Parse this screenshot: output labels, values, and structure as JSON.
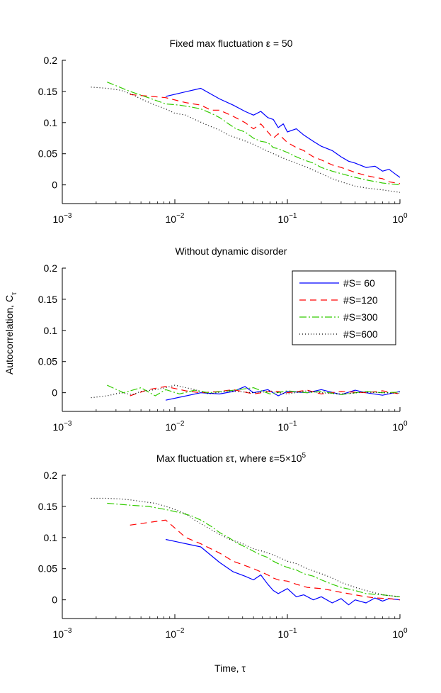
{
  "figure": {
    "ylabel": "Autocorrelation, C",
    "ylabel_sub": "τ",
    "xlabel": "Time, τ"
  },
  "chart_data": [
    {
      "type": "line",
      "title": "Fixed max fluctuation ε = 50",
      "xscale": "log",
      "xlim": [
        0.001,
        1
      ],
      "ylim": [
        -0.03,
        0.2
      ],
      "yticks": [
        "0",
        "0.05",
        "0.1",
        "0.15",
        "0.2"
      ],
      "ytick_values": [
        0,
        0.05,
        0.1,
        0.15,
        0.2
      ],
      "xtick_values": [
        0.001,
        0.01,
        0.1,
        1
      ],
      "xtick_base": "10",
      "xtick_exponents": [
        "−3",
        "−2",
        "−1",
        "0"
      ],
      "legend": false,
      "series": [
        {
          "name": "#S= 60",
          "color": "#0000ff",
          "dash": "none",
          "x": [
            0.0083,
            0.017,
            0.025,
            0.033,
            0.042,
            0.05,
            0.058,
            0.067,
            0.075,
            0.083,
            0.092,
            0.1,
            0.12,
            0.14,
            0.17,
            0.2,
            0.25,
            0.3,
            0.35,
            0.4,
            0.5,
            0.6,
            0.7,
            0.8,
            0.9,
            1.0
          ],
          "y": [
            0.142,
            0.155,
            0.138,
            0.128,
            0.118,
            0.112,
            0.118,
            0.108,
            0.105,
            0.092,
            0.098,
            0.085,
            0.09,
            0.08,
            0.07,
            0.062,
            0.055,
            0.045,
            0.038,
            0.035,
            0.028,
            0.03,
            0.022,
            0.025,
            0.018,
            0.012
          ]
        },
        {
          "name": "#S=120",
          "color": "#ff0000",
          "dash": "9,6",
          "x": [
            0.004,
            0.0083,
            0.0125,
            0.017,
            0.021,
            0.025,
            0.033,
            0.042,
            0.05,
            0.058,
            0.067,
            0.075,
            0.083,
            0.1,
            0.12,
            0.14,
            0.17,
            0.2,
            0.25,
            0.3,
            0.4,
            0.5,
            0.6,
            0.7,
            0.8,
            1.0
          ],
          "y": [
            0.145,
            0.14,
            0.132,
            0.128,
            0.12,
            0.12,
            0.11,
            0.1,
            0.09,
            0.098,
            0.085,
            0.075,
            0.082,
            0.068,
            0.06,
            0.055,
            0.045,
            0.04,
            0.032,
            0.028,
            0.02,
            0.015,
            0.012,
            0.01,
            0.005,
            0.002
          ]
        },
        {
          "name": "#S=300",
          "color": "#33cc00",
          "dash": "10,3,2,3",
          "x": [
            0.0025,
            0.004,
            0.0058,
            0.0083,
            0.011,
            0.014,
            0.017,
            0.021,
            0.025,
            0.03,
            0.035,
            0.042,
            0.05,
            0.058,
            0.067,
            0.075,
            0.083,
            0.1,
            0.12,
            0.14,
            0.17,
            0.2,
            0.25,
            0.3,
            0.4,
            0.5,
            0.7,
            1.0
          ],
          "y": [
            0.165,
            0.15,
            0.14,
            0.13,
            0.128,
            0.125,
            0.122,
            0.115,
            0.108,
            0.098,
            0.09,
            0.085,
            0.075,
            0.07,
            0.068,
            0.06,
            0.058,
            0.052,
            0.045,
            0.04,
            0.035,
            0.028,
            0.022,
            0.018,
            0.012,
            0.008,
            0.003,
            0.0
          ]
        },
        {
          "name": "#S=600",
          "color": "#000000",
          "dash": "1,3",
          "x": [
            0.0018,
            0.0025,
            0.0033,
            0.0042,
            0.005,
            0.0067,
            0.0083,
            0.01,
            0.0125,
            0.015,
            0.02,
            0.025,
            0.03,
            0.04,
            0.05,
            0.06,
            0.075,
            0.1,
            0.12,
            0.15,
            0.2,
            0.25,
            0.3,
            0.4,
            0.5,
            0.7,
            1.0
          ],
          "y": [
            0.157,
            0.155,
            0.152,
            0.145,
            0.138,
            0.128,
            0.122,
            0.115,
            0.112,
            0.105,
            0.095,
            0.088,
            0.08,
            0.072,
            0.065,
            0.058,
            0.05,
            0.04,
            0.035,
            0.028,
            0.018,
            0.01,
            0.005,
            -0.002,
            -0.005,
            -0.008,
            -0.012
          ]
        }
      ]
    },
    {
      "type": "line",
      "title": "Without dynamic disorder",
      "xscale": "log",
      "xlim": [
        0.001,
        1
      ],
      "ylim": [
        -0.03,
        0.2
      ],
      "yticks": [
        "0",
        "0.05",
        "0.1",
        "0.15",
        "0.2"
      ],
      "ytick_values": [
        0,
        0.05,
        0.1,
        0.15,
        0.2
      ],
      "xtick_values": [
        0.001,
        0.01,
        0.1,
        1
      ],
      "xtick_base": "10",
      "xtick_exponents": [
        "−3",
        "−2",
        "−1",
        "0"
      ],
      "legend": true,
      "legend_position": "top-right",
      "series": [
        {
          "name": "#S= 60",
          "color": "#0000ff",
          "dash": "none",
          "x": [
            0.0083,
            0.017,
            0.025,
            0.033,
            0.042,
            0.05,
            0.067,
            0.083,
            0.1,
            0.15,
            0.2,
            0.3,
            0.4,
            0.5,
            0.7,
            1.0
          ],
          "y": [
            -0.012,
            0.0,
            -0.002,
            0.002,
            0.01,
            0.0,
            0.005,
            -0.005,
            0.002,
            0.0,
            0.005,
            -0.003,
            0.004,
            0.0,
            -0.004,
            0.002
          ]
        },
        {
          "name": "#S=120",
          "color": "#ff0000",
          "dash": "9,6",
          "x": [
            0.004,
            0.0058,
            0.0083,
            0.0125,
            0.017,
            0.025,
            0.033,
            0.05,
            0.075,
            0.1,
            0.15,
            0.2,
            0.3,
            0.5,
            0.7,
            1.0
          ],
          "y": [
            -0.005,
            0.005,
            0.01,
            0.003,
            0.0,
            0.002,
            0.005,
            -0.002,
            0.003,
            0.0,
            0.004,
            -0.002,
            0.002,
            0.0,
            0.003,
            -0.002
          ]
        },
        {
          "name": "#S=300",
          "color": "#33cc00",
          "dash": "10,3,2,3",
          "x": [
            0.0025,
            0.0035,
            0.005,
            0.0067,
            0.0083,
            0.011,
            0.015,
            0.02,
            0.03,
            0.05,
            0.07,
            0.1,
            0.15,
            0.2,
            0.3,
            0.5,
            0.7,
            1.0
          ],
          "y": [
            0.012,
            0.0,
            0.008,
            -0.005,
            0.005,
            -0.002,
            0.004,
            0.0,
            0.003,
            0.008,
            -0.002,
            0.003,
            0.0,
            0.002,
            -0.003,
            0.002,
            0.0,
            0.001
          ]
        },
        {
          "name": "#S=600",
          "color": "#000000",
          "dash": "1,3",
          "x": [
            0.0018,
            0.0025,
            0.0033,
            0.0042,
            0.005,
            0.0067,
            0.0083,
            0.01,
            0.015,
            0.02,
            0.03,
            0.05,
            0.07,
            0.1,
            0.15,
            0.2,
            0.3,
            0.5,
            0.7,
            1.0
          ],
          "y": [
            -0.008,
            -0.005,
            0.0,
            -0.003,
            0.002,
            0.005,
            0.008,
            0.012,
            0.005,
            -0.002,
            0.003,
            0.0,
            0.002,
            -0.002,
            0.003,
            0.0,
            -0.002,
            0.001,
            0.0,
            -0.001
          ]
        }
      ]
    },
    {
      "type": "line",
      "title": "Max fluctuation ετ, where ε=5×10",
      "title_sup": "5",
      "xscale": "log",
      "xlim": [
        0.001,
        1
      ],
      "ylim": [
        -0.03,
        0.2
      ],
      "yticks": [
        "0",
        "0.05",
        "0.1",
        "0.15",
        "0.2"
      ],
      "ytick_values": [
        0,
        0.05,
        0.1,
        0.15,
        0.2
      ],
      "xtick_values": [
        0.001,
        0.01,
        0.1,
        1
      ],
      "xtick_base": "10",
      "xtick_exponents": [
        "−3",
        "−2",
        "−1",
        "0"
      ],
      "legend": false,
      "series": [
        {
          "name": "#S= 60",
          "color": "#0000ff",
          "dash": "none",
          "x": [
            0.0083,
            0.017,
            0.025,
            0.033,
            0.042,
            0.05,
            0.058,
            0.067,
            0.075,
            0.083,
            0.1,
            0.12,
            0.14,
            0.17,
            0.2,
            0.25,
            0.3,
            0.35,
            0.4,
            0.5,
            0.6,
            0.7,
            0.8,
            1.0
          ],
          "y": [
            0.097,
            0.085,
            0.06,
            0.045,
            0.038,
            0.032,
            0.04,
            0.025,
            0.015,
            0.01,
            0.018,
            0.005,
            0.008,
            0.0,
            0.005,
            -0.005,
            0.002,
            -0.008,
            0.0,
            -0.005,
            0.003,
            -0.002,
            0.002,
            0.0
          ]
        },
        {
          "name": "#S=120",
          "color": "#ff0000",
          "dash": "9,6",
          "x": [
            0.004,
            0.0083,
            0.0125,
            0.017,
            0.025,
            0.033,
            0.042,
            0.05,
            0.058,
            0.067,
            0.075,
            0.083,
            0.1,
            0.12,
            0.15,
            0.2,
            0.25,
            0.3,
            0.4,
            0.5,
            0.6,
            0.8,
            1.0
          ],
          "y": [
            0.12,
            0.128,
            0.1,
            0.09,
            0.075,
            0.062,
            0.055,
            0.05,
            0.045,
            0.04,
            0.035,
            0.032,
            0.03,
            0.025,
            0.02,
            0.018,
            0.015,
            0.012,
            0.008,
            0.005,
            0.003,
            0.002,
            0.0
          ]
        },
        {
          "name": "#S=300",
          "color": "#33cc00",
          "dash": "10,3,2,3",
          "x": [
            0.0025,
            0.004,
            0.0058,
            0.0083,
            0.011,
            0.014,
            0.017,
            0.021,
            0.025,
            0.03,
            0.035,
            0.042,
            0.05,
            0.058,
            0.067,
            0.075,
            0.083,
            0.1,
            0.12,
            0.14,
            0.17,
            0.2,
            0.25,
            0.3,
            0.4,
            0.5,
            0.7,
            1.0
          ],
          "y": [
            0.155,
            0.152,
            0.15,
            0.145,
            0.14,
            0.135,
            0.128,
            0.118,
            0.108,
            0.1,
            0.092,
            0.085,
            0.078,
            0.072,
            0.068,
            0.062,
            0.058,
            0.052,
            0.048,
            0.042,
            0.038,
            0.032,
            0.025,
            0.02,
            0.015,
            0.01,
            0.008,
            0.005
          ]
        },
        {
          "name": "#S=600",
          "color": "#000000",
          "dash": "1,3",
          "x": [
            0.0018,
            0.0025,
            0.0033,
            0.0042,
            0.005,
            0.0067,
            0.0083,
            0.01,
            0.0125,
            0.015,
            0.02,
            0.025,
            0.03,
            0.04,
            0.05,
            0.06,
            0.075,
            0.1,
            0.12,
            0.15,
            0.2,
            0.25,
            0.3,
            0.4,
            0.5,
            0.7,
            1.0
          ],
          "y": [
            0.163,
            0.163,
            0.162,
            0.16,
            0.158,
            0.155,
            0.15,
            0.145,
            0.138,
            0.128,
            0.115,
            0.105,
            0.098,
            0.09,
            0.082,
            0.078,
            0.072,
            0.062,
            0.058,
            0.05,
            0.042,
            0.035,
            0.028,
            0.02,
            0.015,
            0.008,
            0.005
          ]
        }
      ]
    }
  ]
}
